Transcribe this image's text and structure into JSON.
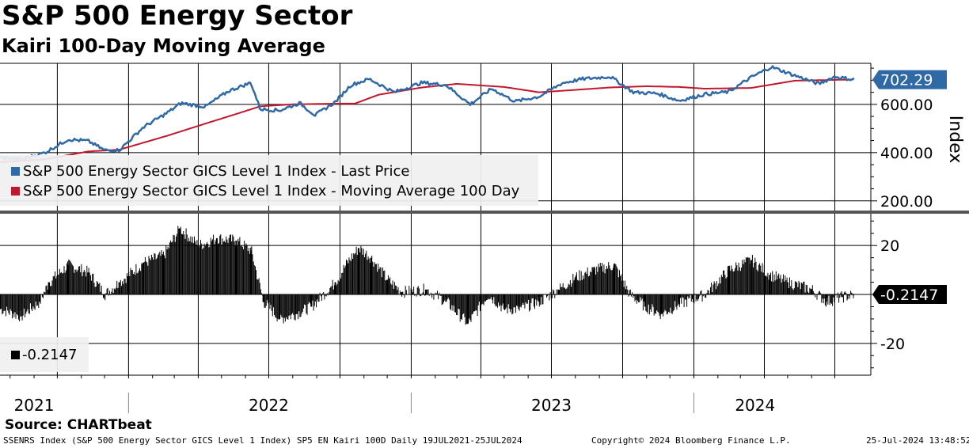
{
  "header": {
    "title": "S&P 500 Energy Sector",
    "subtitle": "Kairi 100-Day Moving Average"
  },
  "source": "Source: CHARTbeat",
  "footer": {
    "left": "SSENRS Index (S&P 500 Energy Sector GICS Level 1 Index) SP5 EN Kairi 100D  Daily 19JUL2021-25JUL2024",
    "center": "Copyright© 2024 Bloomberg Finance L.P.",
    "right": "25-Jul-2024 13:48:52"
  },
  "colors": {
    "price": "#2f6aa6",
    "moving_average": "#c0182e",
    "kairi": "#000000",
    "last_price_tag": "#2f6aa6",
    "kairi_tag": "#000000"
  },
  "chart_data": [
    {
      "type": "line",
      "panel": "upper",
      "ylabel": "Index",
      "ylim": [
        160,
        770
      ],
      "yticks": [
        200,
        400,
        600
      ],
      "ytick_labels": [
        "200.00",
        "400.00",
        "600.00"
      ],
      "x_labels": [
        "2021",
        "2022",
        "2023",
        "2024"
      ],
      "last_value_label": "702.29",
      "legend": {
        "placement": "bottom-left",
        "entries": [
          "S&P 500 Energy Sector GICS Level 1 Index - Last Price",
          "S&P 500 Energy Sector GICS Level 1 Index - Moving Average 100 Day"
        ]
      },
      "series": [
        {
          "name": "S&P 500 Energy Sector GICS Level 1 Index - Last Price",
          "x": [
            "2021-07-19",
            "2021-08-15",
            "2021-09-15",
            "2021-10-15",
            "2021-11-10",
            "2021-12-01",
            "2021-12-20",
            "2022-01-20",
            "2022-02-20",
            "2022-03-10",
            "2022-04-10",
            "2022-05-10",
            "2022-06-08",
            "2022-06-20",
            "2022-07-15",
            "2022-08-10",
            "2022-08-30",
            "2022-09-25",
            "2022-10-15",
            "2022-11-08",
            "2022-12-10",
            "2023-01-15",
            "2023-02-15",
            "2023-03-18",
            "2023-04-15",
            "2023-05-15",
            "2023-06-15",
            "2023-07-15",
            "2023-08-10",
            "2023-09-15",
            "2023-10-15",
            "2023-11-15",
            "2023-12-13",
            "2024-01-15",
            "2024-02-15",
            "2024-03-15",
            "2024-04-10",
            "2024-05-10",
            "2024-06-10",
            "2024-07-01",
            "2024-07-25"
          ],
          "values": [
            380,
            372,
            400,
            455,
            448,
            410,
            410,
            505,
            565,
            605,
            590,
            655,
            690,
            580,
            575,
            605,
            555,
            610,
            680,
            705,
            650,
            690,
            680,
            600,
            665,
            612,
            632,
            688,
            705,
            715,
            650,
            645,
            615,
            642,
            652,
            712,
            755,
            720,
            685,
            715,
            702.29
          ]
        },
        {
          "name": "S&P 500 Energy Sector GICS Level 1 Index - Moving Average 100 Day",
          "x": [
            "2021-07-19",
            "2021-09-15",
            "2021-11-10",
            "2021-12-20",
            "2022-02-20",
            "2022-04-10",
            "2022-05-20",
            "2022-06-20",
            "2022-08-01",
            "2022-09-25",
            "2022-10-20",
            "2022-11-20",
            "2023-01-15",
            "2023-03-01",
            "2023-05-01",
            "2023-06-15",
            "2023-08-01",
            "2023-09-15",
            "2023-11-01",
            "2023-12-13",
            "2024-01-15",
            "2024-03-15",
            "2024-05-10",
            "2024-07-25"
          ],
          "values": [
            360,
            372,
            405,
            412,
            470,
            520,
            560,
            592,
            600,
            603,
            603,
            640,
            670,
            685,
            672,
            650,
            660,
            670,
            675,
            672,
            665,
            668,
            698,
            703
          ]
        }
      ]
    },
    {
      "type": "bar",
      "panel": "lower",
      "ylim": [
        -33,
        33
      ],
      "yticks": [
        20,
        -20
      ],
      "ytick_labels": [
        "20",
        "-20"
      ],
      "last_value_label": "-0.2147",
      "legend": {
        "placement": "bottom-left",
        "entries": [
          "-0.2147"
        ]
      },
      "series": [
        {
          "name": "-0.2147",
          "x": [
            "2021-07-19",
            "2021-08-15",
            "2021-09-08",
            "2021-09-20",
            "2021-10-15",
            "2021-11-10",
            "2021-12-01",
            "2021-12-20",
            "2022-01-20",
            "2022-02-15",
            "2022-03-08",
            "2022-04-01",
            "2022-04-25",
            "2022-05-20",
            "2022-06-08",
            "2022-06-24",
            "2022-07-15",
            "2022-08-05",
            "2022-08-25",
            "2022-09-25",
            "2022-10-10",
            "2022-10-25",
            "2022-11-10",
            "2022-12-01",
            "2022-12-20",
            "2023-01-20",
            "2023-02-15",
            "2023-03-15",
            "2023-04-10",
            "2023-05-01",
            "2023-05-20",
            "2023-06-15",
            "2023-07-10",
            "2023-08-01",
            "2023-08-25",
            "2023-09-20",
            "2023-10-10",
            "2023-10-30",
            "2023-11-20",
            "2023-12-13",
            "2024-01-15",
            "2024-02-15",
            "2024-03-15",
            "2024-04-08",
            "2024-05-01",
            "2024-06-01",
            "2024-06-20",
            "2024-07-10",
            "2024-07-25"
          ],
          "values": [
            -6,
            -9,
            -3,
            5,
            12,
            9,
            0,
            5,
            13,
            16,
            27,
            20,
            23,
            22,
            18,
            -3,
            -10,
            -8,
            -5,
            5,
            13,
            19,
            15,
            6,
            1,
            2,
            -3,
            -12,
            0,
            -6,
            -6,
            -3,
            2,
            7,
            10,
            12,
            0,
            -5,
            -8,
            -4,
            0,
            10,
            14,
            8,
            5,
            2,
            -3,
            -1,
            -0.2147
          ]
        }
      ]
    }
  ]
}
